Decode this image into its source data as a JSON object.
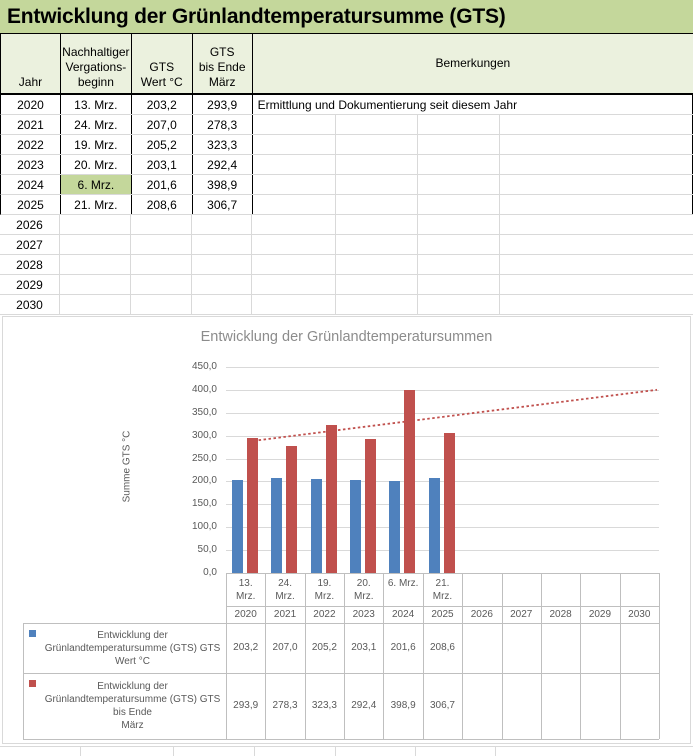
{
  "app": {
    "title": "Entwicklung der Grünlandtemperatursumme  (GTS)"
  },
  "table": {
    "headers": {
      "jahr": "Jahr",
      "beginn_lines": [
        "Nachhaltiger",
        "Vergations-",
        "beginn"
      ],
      "gts_lines": [
        "GTS",
        "Wert °C"
      ],
      "ende_lines": [
        "GTS",
        "bis Ende",
        "März"
      ],
      "bemerkungen": "Bemerkungen"
    },
    "rows": [
      {
        "jahr": "2020",
        "beginn": "13. Mrz.",
        "gts": "203,2",
        "ende": "293,9",
        "bemerkung": "Ermittlung und Dokumentierung seit diesem Jahr",
        "highlight": false,
        "styled": true
      },
      {
        "jahr": "2021",
        "beginn": "24. Mrz.",
        "gts": "207,0",
        "ende": "278,3",
        "bemerkung": "",
        "highlight": false,
        "styled": true
      },
      {
        "jahr": "2022",
        "beginn": "19. Mrz.",
        "gts": "205,2",
        "ende": "323,3",
        "bemerkung": "",
        "highlight": false,
        "styled": true
      },
      {
        "jahr": "2023",
        "beginn": "20. Mrz.",
        "gts": "203,1",
        "ende": "292,4",
        "bemerkung": "",
        "highlight": false,
        "styled": true
      },
      {
        "jahr": "2024",
        "beginn": "6. Mrz.",
        "gts": "201,6",
        "ende": "398,9",
        "bemerkung": "",
        "highlight": true,
        "styled": true
      },
      {
        "jahr": "2025",
        "beginn": "21. Mrz.",
        "gts": "208,6",
        "ende": "306,7",
        "bemerkung": "",
        "highlight": false,
        "styled": true
      },
      {
        "jahr": "2026",
        "beginn": "",
        "gts": "",
        "ende": "",
        "bemerkung": "",
        "highlight": false,
        "styled": false
      },
      {
        "jahr": "2027",
        "beginn": "",
        "gts": "",
        "ende": "",
        "bemerkung": "",
        "highlight": false,
        "styled": false
      },
      {
        "jahr": "2028",
        "beginn": "",
        "gts": "",
        "ende": "",
        "bemerkung": "",
        "highlight": false,
        "styled": false
      },
      {
        "jahr": "2029",
        "beginn": "",
        "gts": "",
        "ende": "",
        "bemerkung": "",
        "highlight": false,
        "styled": false
      },
      {
        "jahr": "2030",
        "beginn": "",
        "gts": "",
        "ende": "",
        "bemerkung": "",
        "highlight": false,
        "styled": false
      }
    ]
  },
  "chart_data": {
    "type": "bar",
    "title": "Entwicklung der Grünlandtemperatursummen",
    "ylabel": "Summe  GTS °C",
    "ylim": [
      0,
      450
    ],
    "ytick_step": 50,
    "ytick_labels": [
      "0,0",
      "50,0",
      "100,0",
      "150,0",
      "200,0",
      "250,0",
      "300,0",
      "350,0",
      "400,0",
      "450,0"
    ],
    "grid": true,
    "legend_position": "data-table-left",
    "categories_years": [
      "2020",
      "2021",
      "2022",
      "2023",
      "2024",
      "2025",
      "2026",
      "2027",
      "2028",
      "2029",
      "2030"
    ],
    "categories_dates_lines": [
      [
        "13.",
        "Mrz."
      ],
      [
        "24.",
        "Mrz."
      ],
      [
        "19.",
        "Mrz."
      ],
      [
        "20.",
        "Mrz."
      ],
      [
        "6. Mrz."
      ],
      [
        "21.",
        "Mrz."
      ],
      [],
      [],
      [],
      [],
      []
    ],
    "series": [
      {
        "name": "Entwicklung der Grünlandtemperatursumme  (GTS) GTS Wert °C",
        "name_lines": [
          "Entwicklung der",
          "Grünlandtemperatursumme  (GTS) GTS",
          "Wert °C"
        ],
        "color": "#4f81bd",
        "values": [
          203.2,
          207.0,
          205.2,
          203.1,
          201.6,
          208.6
        ],
        "value_labels": [
          "203,2",
          "207,0",
          "205,2",
          "203,1",
          "201,6",
          "208,6",
          "",
          "",
          "",
          "",
          ""
        ]
      },
      {
        "name": "Entwicklung der Grünlandtemperatursumme  (GTS) GTS bis Ende März",
        "name_lines": [
          "Entwicklung der",
          "Grünlandtemperatursumme  (GTS) GTS",
          "bis Ende",
          "März"
        ],
        "color": "#c0504d",
        "values": [
          293.9,
          278.3,
          323.3,
          292.4,
          398.9,
          306.7
        ],
        "value_labels": [
          "293,9",
          "278,3",
          "323,3",
          "292,4",
          "398,9",
          "306,7",
          "",
          "",
          "",
          "",
          ""
        ]
      }
    ],
    "trendline": {
      "type": "linear",
      "of_series": "GTS bis Ende März",
      "color": "#c0504d",
      "dash": "dotted",
      "start_value": 287.4,
      "end_value": 400.2
    }
  },
  "colors": {
    "title_bg": "#c4d79b",
    "header_bg": "#ebf1de",
    "highlight_bg": "#c4d79b",
    "bar_blue": "#4f81bd",
    "bar_red": "#c0504d",
    "chart_text": "#595959",
    "chart_title_text": "#8c8c8c",
    "plot_gridline": "#d9d9d9",
    "chart_table_line": "#bfbfbf",
    "sheet_gridline": "#d9d9d9"
  }
}
